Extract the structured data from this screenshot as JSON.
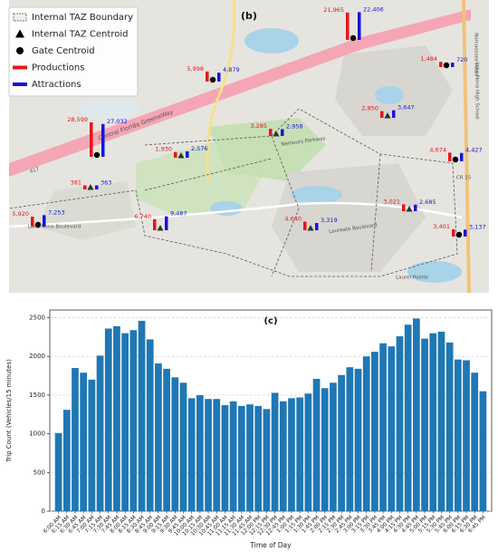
{
  "chart_data": [
    {
      "type": "map",
      "title": "(b)",
      "legend": [
        "Internal TAZ Boundary",
        "Internal TAZ Centroid",
        "Gate Centroid"
      ],
      "centroid": [
        "gate",
        "gate",
        "gate",
        "gate",
        "internal",
        "internal",
        "internal",
        "gate",
        "internal",
        "gate",
        "internal",
        "internal",
        "internal",
        "gate"
      ],
      "series": [
        {
          "name": "Productions",
          "color": "#e8141a",
          "values": [
            21965,
            5998,
            1484,
            28599,
            1930,
            3285,
            2850,
            4674,
            381,
            5920,
            6740,
            4640,
            3021,
            3401
          ],
          "value_labels": [
            "21,965",
            "5,998",
            "1,484",
            "28,599",
            "1,930",
            "3,285",
            "2,850",
            "4,674",
            "381",
            "5,920",
            "6,740",
            "4,640",
            "3,021",
            "3,401"
          ]
        },
        {
          "name": "Attractions",
          "color": "#1414e0",
          "values": [
            22406,
            4879,
            720,
            27032,
            2576,
            2958,
            3647,
            4427,
            363,
            7253,
            9487,
            3319,
            2685,
            3137
          ],
          "value_labels": [
            "22,406",
            "4,879",
            "720",
            "27,032",
            "2,576",
            "2,958",
            "3,647",
            "4,427",
            "363",
            "7,253",
            "9,487",
            "3,319",
            "2,685",
            "3,137"
          ]
        }
      ],
      "map_labels": [
        "Central Florida GreeneWay",
        "Nemours Parkway",
        "Laureate Boulevard",
        "Lake Nona Boulevard",
        "Narcoossee Road",
        "CR 15",
        "Lake Nona High School",
        "Laurel Pointe",
        "417"
      ]
    },
    {
      "type": "bar",
      "title": "(c)",
      "xlabel": "Time of Day",
      "ylabel": "Trip Count (Vehicles/15 minutes)",
      "color": "#1f77b4",
      "grid": true,
      "categories": [
        "6:00 AM",
        "6:15 AM",
        "6:30 AM",
        "6:45 AM",
        "7:00 AM",
        "7:15 AM",
        "7:30 AM",
        "7:45 AM",
        "8:00 AM",
        "8:15 AM",
        "8:30 AM",
        "8:45 AM",
        "9:00 AM",
        "9:15 AM",
        "9:30 AM",
        "9:45 AM",
        "10:00 AM",
        "10:15 AM",
        "10:30 AM",
        "10:45 AM",
        "11:00 AM",
        "11:15 AM",
        "11:30 AM",
        "11:45 AM",
        "12:00 PM",
        "12:15 PM",
        "12:30 PM",
        "12:45 PM",
        "1:00 PM",
        "1:15 PM",
        "1:30 PM",
        "1:45 PM",
        "2:00 PM",
        "2:15 PM",
        "2:30 PM",
        "2:45 PM",
        "3:00 PM",
        "3:15 PM",
        "3:30 PM",
        "3:45 PM",
        "4:00 PM",
        "4:15 PM",
        "4:30 PM",
        "4:45 PM",
        "5:00 PM",
        "5:15 PM",
        "5:30 PM",
        "5:45 PM",
        "6:00 PM",
        "6:15 PM",
        "6:30 PM",
        "6:45 PM"
      ],
      "values": [
        1010,
        1310,
        1850,
        1790,
        1700,
        2010,
        2360,
        2390,
        2300,
        2340,
        2460,
        2220,
        1910,
        1840,
        1730,
        1660,
        1460,
        1500,
        1450,
        1450,
        1370,
        1420,
        1360,
        1380,
        1360,
        1320,
        1530,
        1420,
        1460,
        1470,
        1520,
        1710,
        1590,
        1660,
        1760,
        1860,
        1840,
        2000,
        2060,
        2170,
        2130,
        2260,
        2410,
        2490,
        2230,
        2300,
        2320,
        2180,
        1960,
        1950,
        1790,
        1550
      ],
      "ylim": [
        0,
        2600
      ],
      "yticks": [
        0,
        500,
        1000,
        1500,
        2000,
        2500
      ]
    }
  ]
}
